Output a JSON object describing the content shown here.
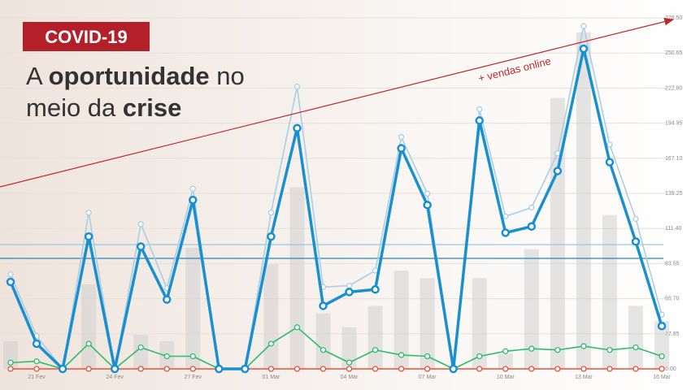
{
  "badge": "COVID-19",
  "headline": [
    [
      {
        "text": "A "
      },
      {
        "text": "oportunidade",
        "bold": true
      },
      {
        "text": " no"
      }
    ],
    [
      {
        "text": "meio da "
      },
      {
        "text": "crise",
        "bold": true
      }
    ]
  ],
  "chart_data": {
    "type": "line",
    "annotation": "+ vendas online",
    "categories": [
      null,
      "21 Fev",
      null,
      null,
      "24 Fev",
      null,
      null,
      "27 Fev",
      null,
      null,
      "01 Mar",
      null,
      null,
      "04 Mar",
      null,
      null,
      "07 Mar",
      null,
      null,
      "10 Mar",
      null,
      null,
      "13 Mar",
      null,
      null,
      "16 Mar"
    ],
    "bars": {
      "color": "#cfcfcf",
      "values": [
        22,
        0,
        0,
        67,
        0,
        27,
        22,
        96,
        0,
        0,
        83,
        144,
        44,
        33,
        50,
        78,
        72,
        0,
        72,
        12,
        95,
        215,
        267,
        122,
        50,
        38
      ]
    },
    "series": [
      {
        "color": "#a9cfe2",
        "values": [
          75,
          26,
          0,
          124,
          0,
          115,
          64,
          143,
          0,
          0,
          124,
          224,
          65,
          66,
          78,
          184,
          139,
          0,
          206,
          121,
          128,
          171,
          272,
          178,
          119,
          43
        ]
      },
      {
        "color": "#e8513a",
        "values": [
          0,
          0,
          0,
          0,
          0,
          0,
          0,
          0,
          0,
          0,
          0,
          0,
          0,
          0,
          0,
          0,
          0,
          0,
          0,
          0,
          0,
          0,
          0,
          0,
          0,
          0
        ]
      },
      {
        "color": "#2ebd6b",
        "values": [
          5,
          6,
          0,
          20,
          0,
          17,
          10,
          10,
          0,
          0,
          20,
          33,
          15,
          5,
          15,
          11,
          10,
          0,
          10,
          14,
          16,
          15,
          18,
          15,
          17,
          10
        ]
      },
      {
        "color": "#1a8fd0",
        "values": [
          69,
          20,
          0,
          105,
          0,
          97,
          55,
          134,
          0,
          0,
          105,
          191,
          50,
          61,
          63,
          175,
          130,
          0,
          197,
          108,
          113,
          157,
          254,
          164,
          101,
          34
        ]
      }
    ],
    "reference_lines": [
      {
        "value": 98.6,
        "color": "#8cc4e4"
      },
      {
        "value": 87.7,
        "color": "#2a85c0"
      }
    ],
    "ylim": [
      0,
      278.5
    ],
    "yticks": [
      {
        "value": 0,
        "label": "0.00"
      },
      27.85,
      {
        "value": 55.7,
        "label": "55.70"
      },
      83.55,
      {
        "value": 111.4,
        "label": "111.40"
      },
      139.25,
      {
        "value": 167.1,
        "label": "167.10"
      },
      194.95,
      {
        "value": 222.8,
        "label": "222.80"
      },
      250.65,
      {
        "value": 278.5,
        "label": "278.50"
      }
    ],
    "grid": true
  }
}
